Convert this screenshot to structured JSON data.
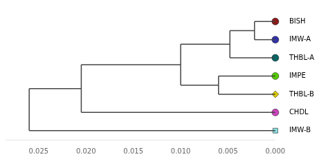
{
  "chart_data": {
    "type": "dendrogram",
    "leaves": [
      {
        "name": "BISH",
        "color": "#8B1A1A",
        "marker": "circle"
      },
      {
        "name": "IMW-A",
        "color": "#3333AA",
        "marker": "circle"
      },
      {
        "name": "THBL-A",
        "color": "#006666",
        "marker": "circle"
      },
      {
        "name": "IMPE",
        "color": "#55CC00",
        "marker": "circle"
      },
      {
        "name": "THBL-B",
        "color": "#DDCC00",
        "marker": "diamond"
      },
      {
        "name": "CHDL",
        "color": "#CC44BB",
        "marker": "circle"
      },
      {
        "name": "IMW-B",
        "color": "#88DDDD",
        "marker": "square"
      }
    ],
    "merges": [
      {
        "left": 0,
        "right": 1,
        "height": 0.0022
      },
      {
        "left": 7,
        "right": 2,
        "height": 0.0048
      },
      {
        "left": 3,
        "right": 4,
        "height": 0.006
      },
      {
        "left": 8,
        "right": 9,
        "height": 0.01
      },
      {
        "left": 10,
        "right": 5,
        "height": 0.0205
      },
      {
        "left": 11,
        "right": 6,
        "height": 0.026
      }
    ],
    "color": "#444444",
    "xlim": [
      0.0285,
      0
    ],
    "xticks": [
      0.025,
      {
        "value": 0.02,
        "label": "0.020"
      },
      0.015,
      {
        "value": 0.01,
        "label": "0.010"
      },
      0.005,
      {
        "value": 0,
        "label": "0.000"
      }
    ],
    "grid": false
  }
}
